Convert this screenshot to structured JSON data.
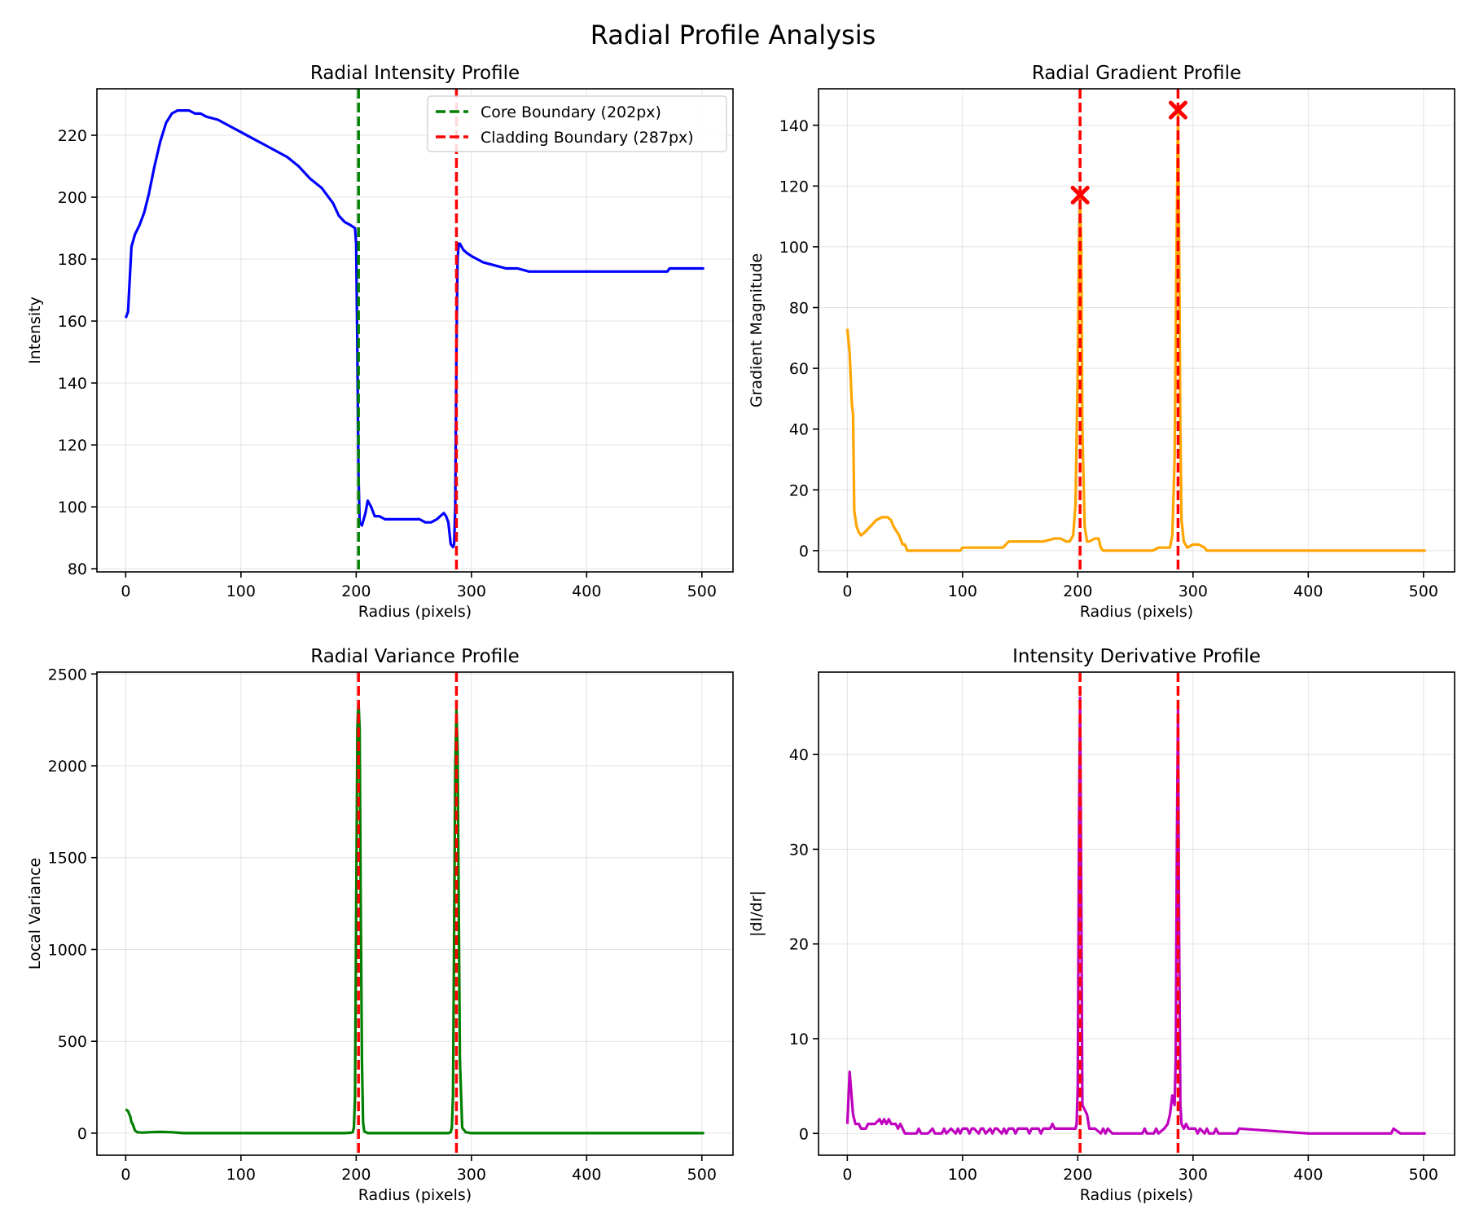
{
  "figure": {
    "title": "Radial Profile Analysis"
  },
  "boundaries": {
    "core": 202,
    "cladding": 287
  },
  "chart_data": [
    {
      "id": "intensity",
      "type": "line",
      "title": "Radial Intensity Profile",
      "xlabel": "Radius (pixels)",
      "ylabel": "Intensity",
      "xlim": [
        -25,
        527
      ],
      "ylim": [
        79,
        235
      ],
      "xticks": [
        0,
        100,
        200,
        300,
        400,
        500
      ],
      "yticks": [
        80,
        100,
        120,
        140,
        160,
        180,
        200,
        220
      ],
      "grid": true,
      "legend": {
        "position": "top-right",
        "entries": [
          "Core Boundary (202px)",
          "Cladding Boundary (287px)"
        ]
      },
      "color": "#0000ff",
      "series": [
        {
          "x": [
            0,
            2,
            3,
            4,
            5,
            8,
            12,
            16,
            20,
            25,
            30,
            35,
            40,
            45,
            48,
            50,
            52,
            55,
            60,
            65,
            70,
            80,
            90,
            100,
            110,
            120,
            130,
            140,
            150,
            160,
            170,
            180,
            185,
            190,
            195,
            199,
            200,
            201,
            202,
            203,
            205,
            208,
            210,
            213,
            216,
            220,
            225,
            230,
            240,
            250,
            255,
            260,
            265,
            270,
            273,
            276,
            278,
            280,
            282,
            284,
            285,
            286,
            287,
            288,
            289,
            290,
            293,
            296,
            300,
            305,
            310,
            320,
            330,
            340,
            350,
            400,
            450,
            470,
            472,
            480,
            490,
            500,
            502
          ],
          "y": [
            161,
            163,
            170,
            177,
            184,
            188,
            191,
            195,
            201,
            210,
            218,
            224,
            227,
            228,
            228,
            228,
            228,
            228,
            227,
            227,
            226,
            225,
            223,
            221,
            219,
            217,
            215,
            213,
            210,
            206,
            203,
            198,
            194,
            192,
            191,
            190,
            185,
            150,
            110,
            95,
            94,
            98,
            102,
            100,
            97,
            97,
            96,
            96,
            96,
            96,
            96,
            95,
            95,
            96,
            97,
            98,
            97,
            95,
            88,
            87,
            88,
            100,
            150,
            180,
            185,
            185,
            183,
            182,
            181,
            180,
            179,
            178,
            177,
            177,
            176,
            176,
            176,
            176,
            177,
            177,
            177,
            177,
            177
          ]
        }
      ]
    },
    {
      "id": "gradient",
      "type": "line",
      "title": "Radial Gradient Profile",
      "xlabel": "Radius (pixels)",
      "ylabel": "Gradient Magnitude",
      "xlim": [
        -25,
        527
      ],
      "ylim": [
        -7,
        152
      ],
      "xticks": [
        0,
        100,
        200,
        300,
        400,
        500
      ],
      "yticks": [
        0,
        20,
        40,
        60,
        80,
        100,
        120,
        140
      ],
      "grid": true,
      "color": "#ffa500",
      "peaks": [
        {
          "x": 202,
          "y": 117
        },
        {
          "x": 287,
          "y": 145
        }
      ],
      "series": [
        {
          "x": [
            0,
            2,
            4,
            5,
            6,
            8,
            10,
            12,
            15,
            20,
            25,
            30,
            35,
            38,
            40,
            45,
            48,
            50,
            52,
            55,
            60,
            70,
            80,
            90,
            98,
            100,
            110,
            120,
            125,
            130,
            135,
            140,
            142,
            145,
            150,
            160,
            170,
            180,
            185,
            190,
            193,
            196,
            198,
            200,
            201,
            202,
            203,
            204,
            206,
            208,
            210,
            215,
            218,
            220,
            222,
            225,
            230,
            240,
            250,
            260,
            265,
            270,
            275,
            278,
            280,
            282,
            284,
            286,
            287,
            288,
            289,
            290,
            292,
            295,
            300,
            305,
            310,
            312,
            315,
            320,
            330,
            400,
            450,
            500,
            502
          ],
          "y": [
            73,
            65,
            48,
            45,
            13,
            8,
            6,
            5,
            6,
            8,
            10,
            11,
            11,
            10,
            8,
            5,
            2,
            2,
            0,
            0,
            0,
            0,
            0,
            0,
            0,
            1,
            1,
            1,
            1,
            1,
            1,
            3,
            3,
            3,
            3,
            3,
            3,
            4,
            4,
            3,
            3,
            5,
            15,
            60,
            100,
            117,
            100,
            40,
            8,
            3,
            3,
            4,
            4,
            1,
            0,
            0,
            0,
            0,
            0,
            0,
            0,
            1,
            1,
            1,
            1,
            5,
            30,
            110,
            145,
            100,
            40,
            10,
            3,
            1,
            2,
            2,
            1,
            0,
            0,
            0,
            0,
            0,
            0,
            0,
            0
          ]
        }
      ]
    },
    {
      "id": "variance",
      "type": "line",
      "title": "Radial Variance Profile",
      "xlabel": "Radius (pixels)",
      "ylabel": "Local Variance",
      "xlim": [
        -25,
        527
      ],
      "ylim": [
        -120,
        2510
      ],
      "xticks": [
        0,
        100,
        200,
        300,
        400,
        500
      ],
      "yticks": [
        0,
        500,
        1000,
        1500,
        2000,
        2500
      ],
      "grid": true,
      "color": "#008000",
      "series": [
        {
          "x": [
            0,
            2,
            4,
            5,
            6,
            8,
            10,
            15,
            20,
            30,
            40,
            50,
            100,
            150,
            190,
            195,
            197,
            198,
            199,
            200,
            201,
            202,
            203,
            204,
            205,
            206,
            207,
            210,
            250,
            280,
            282,
            283,
            284,
            285,
            286,
            287,
            288,
            289,
            290,
            292,
            295,
            300,
            400,
            502
          ],
          "y": [
            130,
            120,
            90,
            60,
            50,
            15,
            5,
            3,
            5,
            7,
            5,
            0,
            0,
            0,
            0,
            2,
            5,
            30,
            200,
            1200,
            2200,
            2350,
            2200,
            1200,
            400,
            60,
            10,
            0,
            0,
            0,
            5,
            30,
            200,
            1100,
            2000,
            2300,
            2100,
            1200,
            400,
            30,
            5,
            0,
            0,
            0
          ]
        }
      ]
    },
    {
      "id": "derivative",
      "type": "line",
      "title": "Intensity Derivative Profile",
      "xlabel": "Radius (pixels)",
      "ylabel": "|dI/dr|",
      "xlim": [
        -25,
        527
      ],
      "ylim": [
        -2.3,
        48.7
      ],
      "xticks": [
        0,
        100,
        200,
        300,
        400,
        500
      ],
      "yticks": [
        0,
        10,
        20,
        30,
        40
      ],
      "grid": true,
      "color": "#bf00bf",
      "series": [
        {
          "x": [
            0,
            2,
            3,
            5,
            7,
            8,
            10,
            12,
            14,
            16,
            18,
            20,
            24,
            28,
            30,
            32,
            34,
            36,
            38,
            40,
            42,
            44,
            46,
            48,
            50,
            52,
            60,
            62,
            64,
            66,
            70,
            74,
            76,
            78,
            82,
            84,
            86,
            90,
            94,
            96,
            98,
            100,
            104,
            106,
            108,
            110,
            114,
            116,
            118,
            120,
            124,
            126,
            128,
            130,
            134,
            136,
            138,
            140,
            144,
            146,
            148,
            150,
            154,
            156,
            158,
            160,
            164,
            166,
            168,
            170,
            174,
            176,
            178,
            180,
            184,
            186,
            188,
            190,
            194,
            196,
            198,
            199,
            200,
            201,
            202,
            203,
            204,
            206,
            208,
            210,
            215,
            220,
            222,
            224,
            226,
            230,
            250,
            256,
            258,
            260,
            266,
            268,
            270,
            275,
            278,
            280,
            282,
            284,
            285,
            286,
            287,
            288,
            289,
            290,
            292,
            294,
            296,
            298,
            300,
            302,
            304,
            306,
            310,
            312,
            314,
            318,
            320,
            322,
            330,
            336,
            338,
            340,
            400,
            470,
            472,
            474,
            480,
            502
          ],
          "y": [
            1,
            6.5,
            5,
            2,
            1,
            1,
            1,
            0.5,
            0.5,
            0.5,
            1,
            1,
            1,
            1.5,
            1,
            1.5,
            1,
            1.5,
            1,
            1,
            1,
            0.5,
            1,
            0.5,
            0,
            0,
            0,
            0.5,
            0,
            0,
            0,
            0.5,
            0,
            0,
            0,
            0.5,
            0,
            0.5,
            0,
            0.5,
            0,
            0.5,
            0.5,
            0,
            0.5,
            0.5,
            0,
            0.5,
            0.5,
            0,
            0.5,
            0,
            0.5,
            0.5,
            0,
            0.5,
            0,
            0.5,
            0.5,
            0,
            0.5,
            0.5,
            0.5,
            0.5,
            0,
            0.5,
            0.5,
            0.5,
            0,
            0.5,
            0.5,
            0.5,
            1,
            0.5,
            0.5,
            0.5,
            0.5,
            0.5,
            0.5,
            0.5,
            0.5,
            1,
            5,
            30,
            46,
            25,
            3,
            2.5,
            2,
            0.5,
            0.5,
            0,
            0.5,
            0,
            0.5,
            0,
            0,
            0,
            0.5,
            0,
            0,
            0.5,
            0,
            0.5,
            1,
            2,
            4,
            3,
            8,
            30,
            45,
            20,
            3,
            1,
            0.5,
            1,
            0.5,
            0.5,
            0.5,
            0.5,
            0,
            0.5,
            0,
            0.5,
            0,
            0,
            0.5,
            0,
            0,
            0,
            0,
            0.5,
            0,
            0,
            0,
            0.5,
            0,
            0
          ]
        }
      ]
    }
  ]
}
